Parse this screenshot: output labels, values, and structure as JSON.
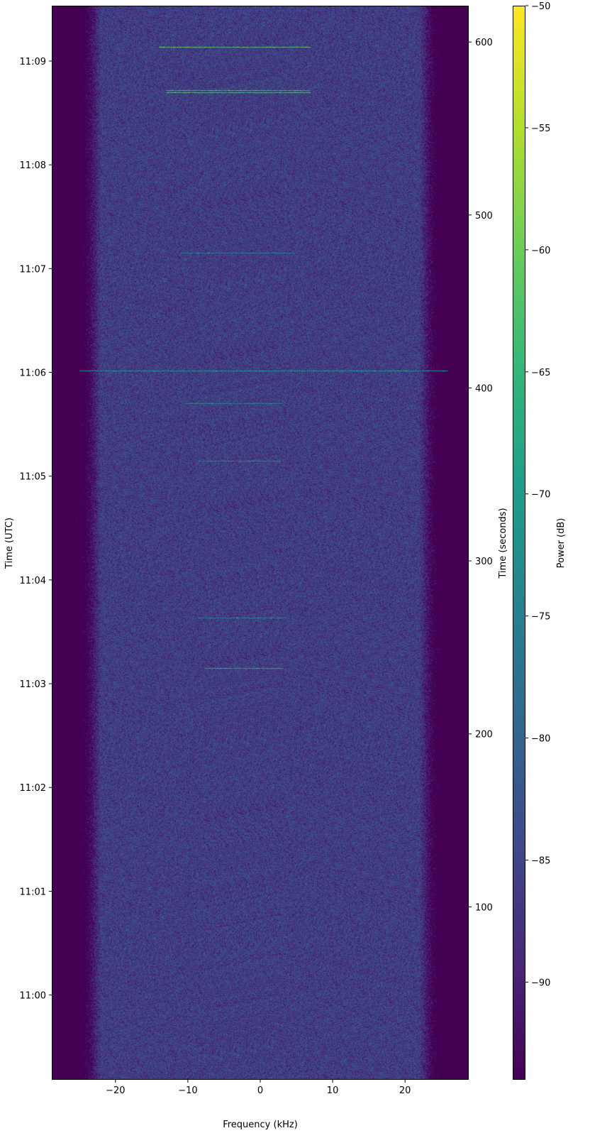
{
  "chart_data": {
    "type": "heatmap",
    "subtype": "spectrogram",
    "xlabel": "Frequency (kHz)",
    "ylabel_left": "Time (UTC)",
    "ylabel_right": "Time (seconds)",
    "colorbar_label": "Power (dB)",
    "colormap": "viridis",
    "xlim": [
      -28.8,
      28.8
    ],
    "x_ticks": [
      -20,
      -10,
      0,
      10,
      20
    ],
    "ylim_seconds": [
      0,
      621
    ],
    "right_ticks": [
      100,
      200,
      300,
      400,
      500,
      600
    ],
    "left_ticks": [
      {
        "label": "11:00",
        "seconds": 49
      },
      {
        "label": "11:01",
        "seconds": 109
      },
      {
        "label": "11:02",
        "seconds": 169
      },
      {
        "label": "11:03",
        "seconds": 229
      },
      {
        "label": "11:04",
        "seconds": 289
      },
      {
        "label": "11:05",
        "seconds": 349
      },
      {
        "label": "11:06",
        "seconds": 409
      },
      {
        "label": "11:07",
        "seconds": 469
      },
      {
        "label": "11:08",
        "seconds": 529
      },
      {
        "label": "11:09",
        "seconds": 589
      }
    ],
    "clim": [
      -94,
      -50
    ],
    "colorbar_ticks": [
      -90,
      -85,
      -80,
      -75,
      -70,
      -65,
      -60,
      -55,
      -50
    ],
    "noise_floor_db": -86,
    "passband_khz": [
      -24,
      24
    ],
    "signals": [
      {
        "time_s": 597,
        "freq_khz": [
          -14,
          7
        ],
        "power_db": -62
      },
      {
        "time_s": 572,
        "freq_khz": [
          -13,
          7
        ],
        "power_db": -66
      },
      {
        "time_s": 571,
        "freq_khz": [
          -13,
          7
        ],
        "power_db": -64
      },
      {
        "time_s": 478,
        "freq_khz": [
          -11,
          5
        ],
        "power_db": -76
      },
      {
        "time_s": 410,
        "freq_khz": [
          -25,
          26
        ],
        "power_db": -72
      },
      {
        "time_s": 391,
        "freq_khz": [
          -10.5,
          3
        ],
        "power_db": -74
      },
      {
        "time_s": 358,
        "freq_khz": [
          -8.5,
          2.7
        ],
        "power_db": -75
      },
      {
        "time_s": 267,
        "freq_khz": [
          -8.5,
          3.6
        ],
        "power_db": -75
      },
      {
        "time_s": 238,
        "freq_khz": [
          -7.7,
          3.1
        ],
        "power_db": -70
      }
    ]
  }
}
